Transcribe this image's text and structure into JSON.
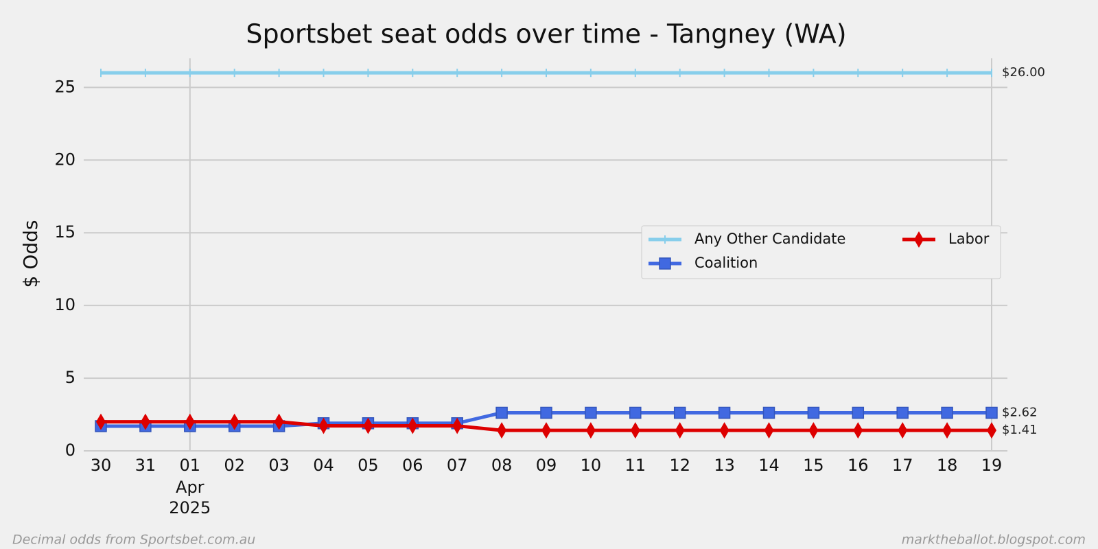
{
  "chart_data": {
    "type": "line",
    "title": "Sportsbet seat odds over time - Tangney (WA)",
    "y_label": "$ Odds",
    "categories": [
      "30",
      "31",
      "01",
      "02",
      "03",
      "04",
      "05",
      "06",
      "07",
      "08",
      "09",
      "10",
      "11",
      "12",
      "13",
      "14",
      "15",
      "16",
      "17",
      "18",
      "19"
    ],
    "category_sublabels": [
      null,
      null,
      [
        "Apr",
        "2025"
      ],
      null,
      null,
      null,
      null,
      null,
      null,
      null,
      null,
      null,
      null,
      null,
      null,
      null,
      null,
      null,
      null,
      null,
      null
    ],
    "x_major_ticks": [
      "01",
      "19"
    ],
    "series": [
      {
        "name": "Any Other Candidate",
        "color": "#87ceeb",
        "marker": "vline",
        "end_label": "$26.00",
        "values": [
          26,
          26,
          26,
          26,
          26,
          26,
          26,
          26,
          26,
          26,
          26,
          26,
          26,
          26,
          26,
          26,
          26,
          26,
          26,
          26,
          26
        ]
      },
      {
        "name": "Coalition",
        "color": "#4169e1",
        "marker": "square",
        "end_label": "$2.62",
        "values": [
          1.7,
          1.7,
          1.7,
          1.7,
          1.7,
          1.9,
          1.9,
          1.9,
          1.9,
          2.62,
          2.62,
          2.62,
          2.62,
          2.62,
          2.62,
          2.62,
          2.62,
          2.62,
          2.62,
          2.62,
          2.62
        ]
      },
      {
        "name": "Labor",
        "color": "#dd0000",
        "marker": "diamond",
        "end_label": "$1.41",
        "values": [
          2.0,
          2.0,
          2.0,
          2.0,
          2.0,
          1.72,
          1.72,
          1.72,
          1.72,
          1.41,
          1.41,
          1.41,
          1.41,
          1.41,
          1.41,
          1.41,
          1.41,
          1.41,
          1.41,
          1.41,
          1.41
        ]
      }
    ],
    "ylim": [
      0,
      27
    ],
    "yticks": [
      0,
      5,
      10,
      15,
      20,
      25
    ],
    "grid": true,
    "legend": "right",
    "footnote_left": "Decimal odds from Sportsbet.com.au",
    "footnote_right": "marktheballot.blogspot.com"
  }
}
